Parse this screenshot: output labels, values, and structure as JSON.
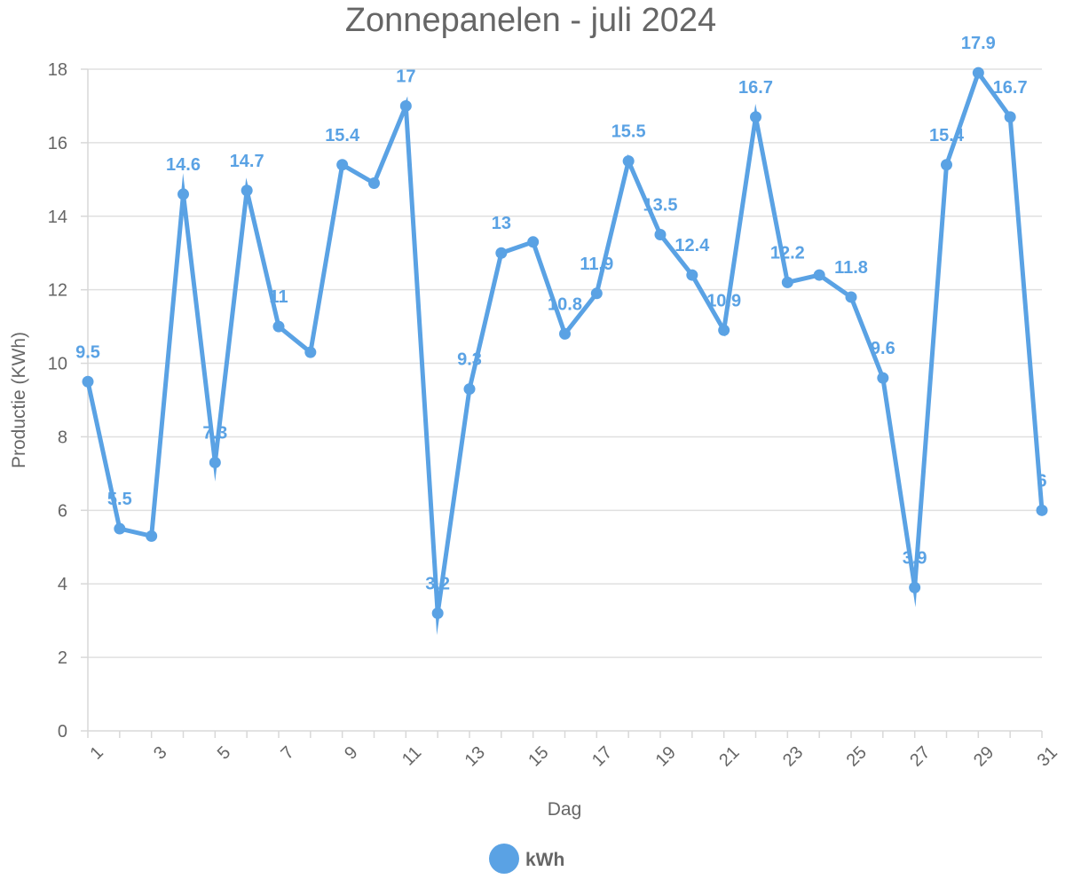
{
  "chart_data": {
    "type": "line",
    "title": "Zonnepanelen - juli 2024",
    "xlabel": "Dag",
    "ylabel": "Productie (KWh)",
    "ylim": [
      0,
      18
    ],
    "y_ticks": [
      "0",
      "2",
      "4",
      "6",
      "8",
      "10",
      "12",
      "14",
      "16",
      "18"
    ],
    "x_tick_labels": [
      "1",
      "3",
      "5",
      "7",
      "9",
      "11",
      "13",
      "15",
      "17",
      "19",
      "21",
      "23",
      "25",
      "27",
      "29",
      "31"
    ],
    "grid": true,
    "legend_position": "bottom",
    "colors": {
      "series": "#5aa2e4",
      "grid": "#e0e0e0",
      "axis": "#d8d8d8",
      "text": "#666666"
    },
    "x": [
      1,
      2,
      3,
      4,
      5,
      6,
      7,
      8,
      9,
      10,
      11,
      12,
      13,
      14,
      15,
      16,
      17,
      18,
      19,
      20,
      21,
      22,
      23,
      24,
      25,
      26,
      27,
      28,
      29,
      30,
      31
    ],
    "series": [
      {
        "name": "kWh",
        "values": [
          9.5,
          5.5,
          5.3,
          14.6,
          7.3,
          14.7,
          11,
          10.3,
          15.4,
          14.9,
          17,
          3.2,
          9.3,
          13,
          13.3,
          10.8,
          11.9,
          15.5,
          13.5,
          12.4,
          10.9,
          16.7,
          12.2,
          12.4,
          11.8,
          9.6,
          3.9,
          15.4,
          17.9,
          16.7,
          6
        ],
        "data_labels": [
          "9.5",
          "5.5",
          "",
          "14.6",
          "7.3",
          "14.7",
          "11",
          "",
          "15.4",
          "",
          "17",
          "3.2",
          "9.3",
          "13",
          "",
          "10.8",
          "11.9",
          "15.5",
          "13.5",
          "12.4",
          "10.9",
          "16.7",
          "12.2",
          "",
          "11.8",
          "9.6",
          "3.9",
          "15.4",
          "17.9",
          "16.7",
          "6"
        ]
      }
    ]
  }
}
